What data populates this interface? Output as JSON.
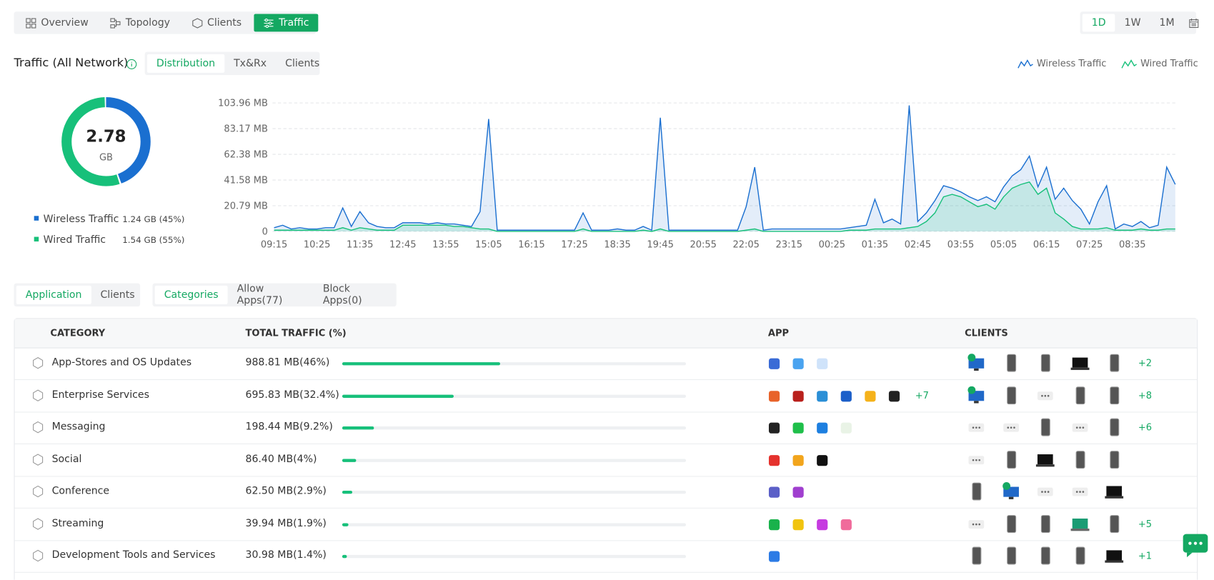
{
  "tabs": [
    "Overview",
    "Topology",
    "Clients",
    "Traffic"
  ],
  "range_tabs": [
    "1D",
    "1W",
    "1M"
  ],
  "traffic_title": "Traffic (All Network)",
  "view_tabs": [
    "Distribution",
    "Tx&Rx",
    "Clients"
  ],
  "chart_data": [
    {
      "type": "pie",
      "center_value": "2.78",
      "center_unit": "GB",
      "categories": [
        "Wireless Traffic",
        "Wired Traffic"
      ],
      "values": [
        45,
        55
      ],
      "value_labels": [
        "1.24 GB (45%)",
        "1.54 GB (55%)"
      ],
      "colors": [
        "#1a6fd0",
        "#17c07a"
      ]
    },
    {
      "type": "line",
      "categories": [
        "09:15",
        null,
        null,
        null,
        null,
        "10:25",
        null,
        null,
        null,
        null,
        "11:35",
        null,
        null,
        null,
        null,
        "12:45",
        null,
        null,
        null,
        null,
        "13:55",
        null,
        null,
        null,
        null,
        "15:05",
        null,
        null,
        null,
        null,
        "16:15",
        null,
        null,
        null,
        null,
        "17:25",
        null,
        null,
        null,
        null,
        "18:35",
        null,
        null,
        null,
        null,
        "19:45",
        null,
        null,
        null,
        null,
        "20:55",
        null,
        null,
        null,
        null,
        "22:05",
        null,
        null,
        null,
        null,
        "23:15",
        null,
        null,
        null,
        null,
        "00:25",
        null,
        null,
        null,
        null,
        "01:35",
        null,
        null,
        null,
        null,
        "02:45",
        null,
        null,
        null,
        null,
        "03:55",
        null,
        null,
        null,
        null,
        "05:05",
        null,
        null,
        null,
        null,
        "06:15",
        null,
        null,
        null,
        null,
        "07:25",
        null,
        null,
        null,
        null,
        "08:35",
        null,
        null,
        null,
        null,
        null
      ],
      "series": [
        {
          "name": "Wireless Traffic",
          "color": "#1a6fd0",
          "values": [
            3,
            5,
            2,
            3,
            2,
            2,
            3,
            3,
            19,
            4,
            16,
            7,
            4,
            3,
            3,
            7,
            7,
            7,
            6,
            7,
            6,
            6,
            5,
            4,
            16,
            91,
            1,
            1,
            1,
            1,
            1,
            1,
            1,
            1,
            1,
            1,
            15,
            1,
            1,
            1,
            2,
            1,
            1,
            4,
            1,
            92,
            1,
            1,
            1,
            1,
            1,
            1,
            1,
            1,
            1,
            20,
            52,
            1,
            2,
            2,
            2,
            2,
            2,
            2,
            2,
            2,
            2,
            3,
            4,
            5,
            26,
            7,
            10,
            6,
            102,
            8,
            15,
            25,
            37,
            35,
            32,
            28,
            25,
            28,
            24,
            36,
            45,
            50,
            61,
            36,
            52,
            26,
            35,
            25,
            18,
            6,
            24,
            37,
            2,
            6,
            4,
            8,
            3,
            5,
            52,
            38
          ]
        },
        {
          "name": "Wired Traffic",
          "color": "#17c07a",
          "values": [
            1,
            1,
            1,
            1,
            1,
            1,
            1,
            1,
            3,
            1,
            3,
            2,
            1,
            1,
            1,
            5,
            5,
            5,
            5,
            5,
            5,
            4,
            4,
            3,
            2,
            2,
            0,
            0,
            0,
            0,
            0,
            0,
            0,
            0,
            0,
            0,
            2,
            0,
            0,
            0,
            0,
            0,
            0,
            1,
            0,
            2,
            0,
            0,
            0,
            0,
            0,
            0,
            0,
            0,
            0,
            1,
            2,
            0,
            0,
            0,
            0,
            0,
            0,
            0,
            0,
            0,
            0,
            1,
            1,
            1,
            2,
            2,
            2,
            2,
            3,
            4,
            8,
            15,
            28,
            30,
            28,
            24,
            20,
            22,
            18,
            28,
            35,
            38,
            40,
            30,
            35,
            15,
            10,
            4,
            2,
            2,
            2,
            3,
            1,
            1,
            1,
            2,
            1,
            1,
            2,
            2
          ]
        }
      ],
      "ylim": [
        0,
        103.96
      ],
      "yticks": [
        0,
        {
          "value": 20.79,
          "label": "20.79 MB"
        },
        {
          "value": 41.58,
          "label": "41.58 MB"
        },
        {
          "value": 62.38,
          "label": "62.38 MB"
        },
        {
          "value": 83.17,
          "label": "83.17 MB"
        },
        {
          "value": 103.96,
          "label": "103.96 MB"
        }
      ],
      "grid": true
    }
  ],
  "scope_tabs": [
    "Application",
    "Clients"
  ],
  "filter_tabs": [
    "Categories",
    "Allow Apps(77)",
    "Block Apps(0)"
  ],
  "table": {
    "headers": [
      "CATEGORY",
      "TOTAL TRAFFIC (%)",
      "APP",
      "CLIENTS"
    ],
    "rows": [
      {
        "category": "App-Stores and OS Updates",
        "traffic": "988.81 MB(46%)",
        "share": 46,
        "clients_more": "+2"
      },
      {
        "category": "Enterprise Services",
        "traffic": "695.83 MB(32.4%)",
        "share": 32.4,
        "apps_more": "+7",
        "clients_more": "+8"
      },
      {
        "category": "Messaging",
        "traffic": "198.44 MB(9.2%)",
        "share": 9.2,
        "clients_more": "+6"
      },
      {
        "category": "Social",
        "traffic": "86.40 MB(4%)",
        "share": 4
      },
      {
        "category": "Conference",
        "traffic": "62.50 MB(2.9%)",
        "share": 2.9
      },
      {
        "category": "Streaming",
        "traffic": "39.94 MB(1.9%)",
        "share": 1.9,
        "clients_more": "+5"
      },
      {
        "category": "Development Tools and Services",
        "traffic": "30.98 MB(1.4%)",
        "share": 1.4,
        "clients_more": "+1"
      }
    ]
  }
}
